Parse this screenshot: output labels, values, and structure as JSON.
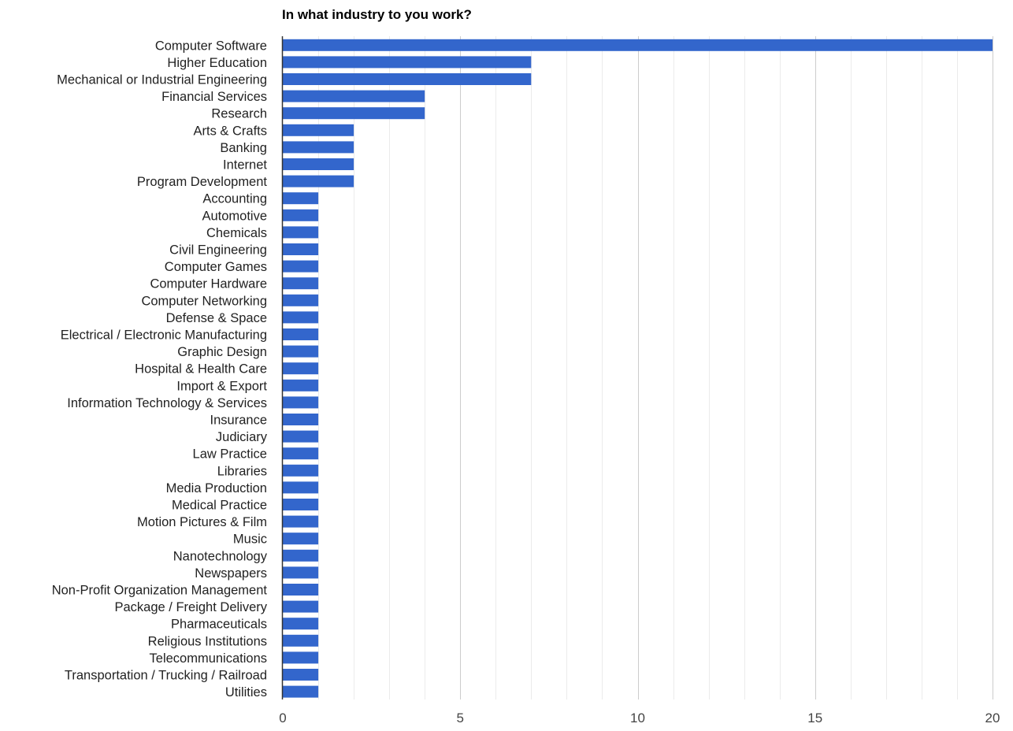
{
  "chart_data": {
    "type": "bar",
    "orientation": "horizontal",
    "title": "In what industry to you work?",
    "xlabel": "",
    "ylabel": "",
    "xlim": [
      0,
      20
    ],
    "major_ticks": [
      0,
      5,
      10,
      15,
      20
    ],
    "minor_step": 1,
    "grid": true,
    "legend": "none",
    "categories": [
      "Computer Software",
      "Higher Education",
      "Mechanical or Industrial Engineering",
      "Financial Services",
      "Research",
      "Arts & Crafts",
      "Banking",
      "Internet",
      "Program Development",
      "Accounting",
      "Automotive",
      "Chemicals",
      "Civil Engineering",
      "Computer Games",
      "Computer Hardware",
      "Computer Networking",
      "Defense & Space",
      "Electrical / Electronic Manufacturing",
      "Graphic Design",
      "Hospital & Health Care",
      "Import & Export",
      "Information Technology & Services",
      "Insurance",
      "Judiciary",
      "Law Practice",
      "Libraries",
      "Media Production",
      "Medical Practice",
      "Motion Pictures & Film",
      "Music",
      "Nanotechnology",
      "Newspapers",
      "Non-Profit Organization Management",
      "Package / Freight Delivery",
      "Pharmaceuticals",
      "Religious Institutions",
      "Telecommunications",
      "Transportation / Trucking / Railroad",
      "Utilities"
    ],
    "values": [
      20,
      7,
      7,
      4,
      4,
      2,
      2,
      2,
      2,
      1,
      1,
      1,
      1,
      1,
      1,
      1,
      1,
      1,
      1,
      1,
      1,
      1,
      1,
      1,
      1,
      1,
      1,
      1,
      1,
      1,
      1,
      1,
      1,
      1,
      1,
      1,
      1,
      1,
      1
    ],
    "colors": {
      "bar": "#3366cc",
      "major_grid": "#cccccc",
      "minor_grid": "#ebebeb",
      "axis": "#333333",
      "label": "#222222",
      "tick_label": "#444444"
    }
  }
}
